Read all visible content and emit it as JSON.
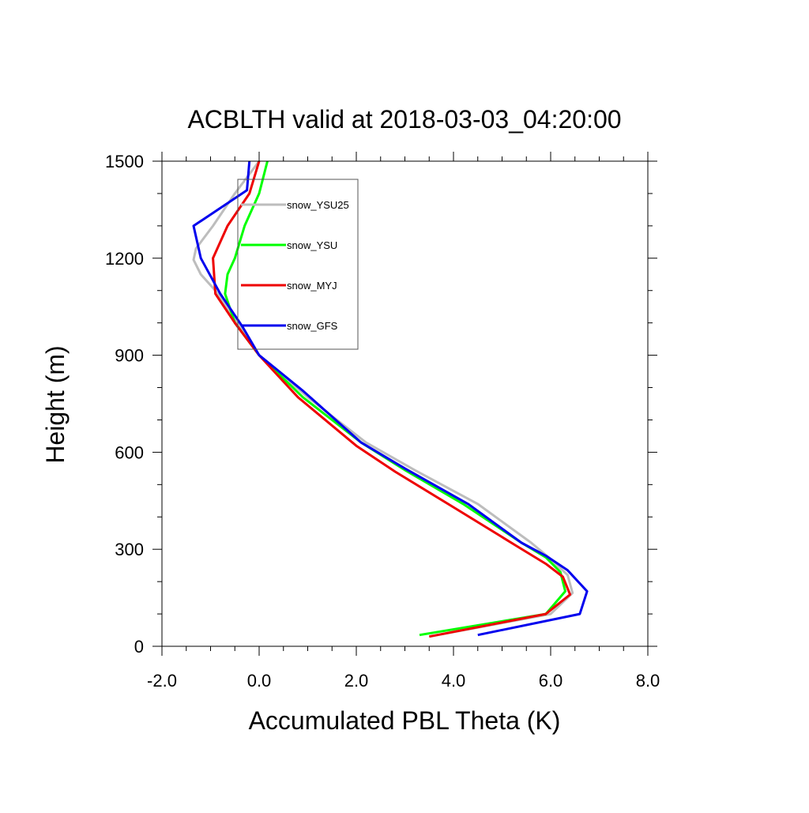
{
  "chart_data": {
    "type": "line",
    "title": "ACBLTH valid at 2018-03-03_04:20:00",
    "xlabel": "Accumulated PBL Theta (K)",
    "ylabel": "Height (m)",
    "xlim": [
      -2.0,
      8.0
    ],
    "ylim": [
      0,
      1500
    ],
    "x_ticks": [
      -2.0,
      0.0,
      2.0,
      4.0,
      6.0,
      8.0
    ],
    "x_tick_labels": [
      "-2.0",
      "0.0",
      "2.0",
      "4.0",
      "6.0",
      "8.0"
    ],
    "y_ticks": [
      0,
      300,
      600,
      900,
      1200,
      1500
    ],
    "y_tick_labels": [
      "0",
      "300",
      "600",
      "900",
      "1200",
      "1500"
    ],
    "grid": false,
    "legend_position": "upper-left inside",
    "series": [
      {
        "name": "snow_YSU25",
        "color": "#bdbdbd",
        "x": [
          3.5,
          6.0,
          6.45,
          6.35,
          6.0,
          5.6,
          4.5,
          3.2,
          2.2,
          1.0,
          0.0,
          -0.45,
          -0.9,
          -1.2,
          -1.35,
          -1.3,
          -0.95,
          -0.5,
          0.0
        ],
        "y": [
          30,
          100,
          165,
          220,
          270,
          320,
          440,
          545,
          630,
          770,
          900,
          1000,
          1100,
          1150,
          1195,
          1230,
          1300,
          1400,
          1500
        ]
      },
      {
        "name": "snow_YSU",
        "color": "#00ff00",
        "x": [
          3.3,
          5.9,
          6.3,
          6.2,
          5.9,
          5.4,
          4.2,
          3.0,
          2.1,
          0.9,
          0.0,
          -0.5,
          -0.7,
          -0.65,
          -0.5,
          -0.3,
          0.0,
          0.17
        ],
        "y": [
          35,
          100,
          170,
          230,
          275,
          320,
          440,
          545,
          630,
          770,
          900,
          1000,
          1090,
          1150,
          1200,
          1300,
          1400,
          1500
        ]
      },
      {
        "name": "snow_MYJ",
        "color": "#ee0000",
        "x": [
          3.5,
          5.9,
          6.4,
          6.25,
          5.9,
          5.3,
          4.0,
          2.8,
          2.0,
          0.8,
          0.0,
          -0.5,
          -0.9,
          -0.95,
          -0.65,
          -0.2,
          0.0
        ],
        "y": [
          30,
          100,
          160,
          215,
          255,
          310,
          430,
          540,
          620,
          770,
          900,
          1000,
          1090,
          1200,
          1300,
          1400,
          1500
        ]
      },
      {
        "name": "snow_GFS",
        "color": "#0000ee",
        "x": [
          4.5,
          6.6,
          6.75,
          6.35,
          5.9,
          5.4,
          4.3,
          3.0,
          2.1,
          0.9,
          0.0,
          -0.35,
          -0.8,
          -1.2,
          -1.35,
          -0.25,
          -0.2
        ],
        "y": [
          35,
          100,
          170,
          235,
          280,
          320,
          440,
          550,
          630,
          790,
          900,
          990,
          1090,
          1200,
          1300,
          1410,
          1500
        ]
      }
    ]
  }
}
